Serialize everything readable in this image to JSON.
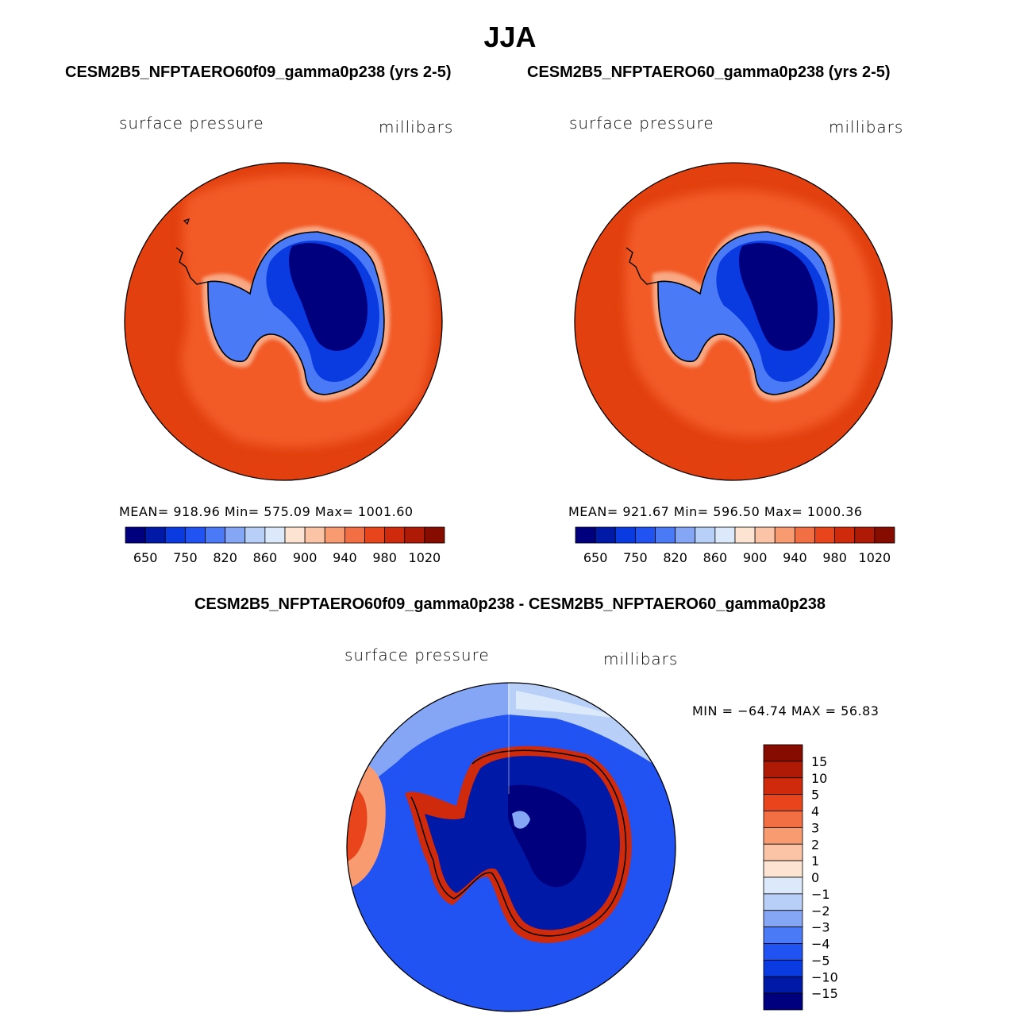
{
  "title": "JJA",
  "colors": {
    "bluered": [
      "#00007f",
      "#0019a6",
      "#0a3be0",
      "#2152f2",
      "#4a7af5",
      "#85a6f5",
      "#b8cff7",
      "#dbe9fb",
      "#fde4d2",
      "#fcc4a6",
      "#f99b71",
      "#f26f43",
      "#e8451c",
      "#cf2a0c",
      "#ae1a06",
      "#870c00"
    ],
    "coast": "#000000"
  },
  "chart_data": [
    {
      "type": "heatmap",
      "title": "CESM2B5_NFPTAERO60f09_gamma0p238 (yrs 2-5)",
      "field": "surface pressure",
      "units": "millibars",
      "stats": {
        "mean": "918.96",
        "min": "575.09",
        "max": "1001.60"
      },
      "stats_text": "MEAN= 918.96   Min= 575.09   Max= 1001.60",
      "colorbar_ticks": [
        "650",
        "750",
        "820",
        "860",
        "900",
        "940",
        "980",
        "1020"
      ],
      "projection": "south polar stereographic"
    },
    {
      "type": "heatmap",
      "title": "CESM2B5_NFPTAERO60_gamma0p238 (yrs 2-5)",
      "field": "surface pressure",
      "units": "millibars",
      "stats": {
        "mean": "921.67",
        "min": "596.50",
        "max": "1000.36"
      },
      "stats_text": "MEAN= 921.67   Min= 596.50   Max= 1000.36",
      "colorbar_ticks": [
        "650",
        "750",
        "820",
        "860",
        "900",
        "940",
        "980",
        "1020"
      ],
      "projection": "south polar stereographic"
    },
    {
      "type": "heatmap",
      "title": "CESM2B5_NFPTAERO60f09_gamma0p238 - CESM2B5_NFPTAERO60_gamma0p238",
      "field": "surface pressure",
      "units": "millibars",
      "stats": {
        "min": "-64.74",
        "max": "56.83"
      },
      "stats_text": "MIN = −64.74 MAX =  56.83",
      "colorbar_ticks": [
        "15",
        "10",
        "5",
        "4",
        "3",
        "2",
        "1",
        "0",
        "−1",
        "−2",
        "−3",
        "−4",
        "−5",
        "−10",
        "−15"
      ],
      "projection": "south polar stereographic"
    }
  ]
}
